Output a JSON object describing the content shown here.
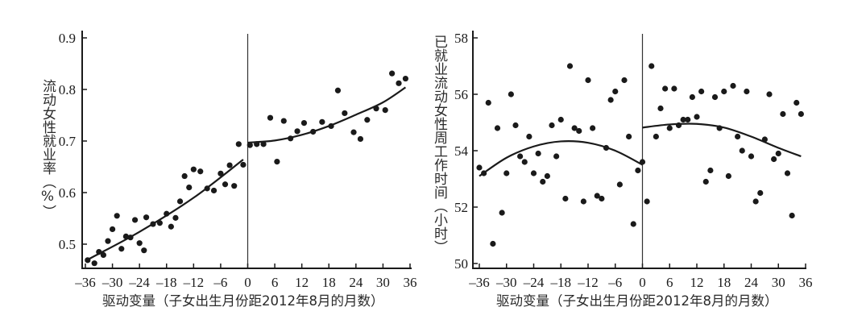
{
  "chart_data": [
    {
      "type": "scatter",
      "title": "",
      "xlabel": "驱动变量（子女出生月份距2012年8月的月数）",
      "ylabel": "流动女性就业率（%）",
      "xticks": [
        -36,
        -30,
        -24,
        -18,
        -12,
        -6,
        0,
        6,
        12,
        18,
        24,
        30,
        36
      ],
      "yticks": [
        0.5,
        0.6,
        0.7,
        0.8,
        0.9
      ],
      "xlim": [
        -37,
        37
      ],
      "ylim": [
        0.453,
        0.9
      ],
      "cutoff": 0,
      "grid": false,
      "series": [
        {
          "name": "scatter",
          "points": [
            [
              -35.5,
              0.469
            ],
            [
              -34,
              0.463
            ],
            [
              -33,
              0.485
            ],
            [
              -32,
              0.479
            ],
            [
              -31,
              0.506
            ],
            [
              -30,
              0.529
            ],
            [
              -29,
              0.555
            ],
            [
              -28,
              0.491
            ],
            [
              -27,
              0.515
            ],
            [
              -26,
              0.513
            ],
            [
              -25,
              0.547
            ],
            [
              -24,
              0.502
            ],
            [
              -23,
              0.488
            ],
            [
              -22.5,
              0.552
            ],
            [
              -21,
              0.539
            ],
            [
              -19.5,
              0.541
            ],
            [
              -18,
              0.559
            ],
            [
              -17,
              0.534
            ],
            [
              -16,
              0.551
            ],
            [
              -15,
              0.583
            ],
            [
              -14,
              0.632
            ],
            [
              -13,
              0.61
            ],
            [
              -12,
              0.645
            ],
            [
              -10.5,
              0.641
            ],
            [
              -9,
              0.608
            ],
            [
              -7.5,
              0.604
            ],
            [
              -6,
              0.637
            ],
            [
              -5,
              0.616
            ],
            [
              -4,
              0.653
            ],
            [
              -3,
              0.613
            ],
            [
              -2,
              0.694
            ],
            [
              -1,
              0.654
            ],
            [
              0.5,
              0.692
            ],
            [
              2,
              0.694
            ],
            [
              3.5,
              0.694
            ],
            [
              5,
              0.745
            ],
            [
              6.5,
              0.66
            ],
            [
              8,
              0.739
            ],
            [
              9.5,
              0.705
            ],
            [
              11,
              0.719
            ],
            [
              12.5,
              0.735
            ],
            [
              14.5,
              0.718
            ],
            [
              16.5,
              0.737
            ],
            [
              18.5,
              0.729
            ],
            [
              20,
              0.798
            ],
            [
              21.5,
              0.754
            ],
            [
              23.5,
              0.717
            ],
            [
              25,
              0.704
            ],
            [
              26.5,
              0.741
            ],
            [
              28.5,
              0.763
            ],
            [
              30.5,
              0.76
            ],
            [
              32,
              0.831
            ],
            [
              33.5,
              0.812
            ],
            [
              35,
              0.821
            ]
          ]
        },
        {
          "name": "fit-left",
          "type": "line",
          "points": [
            [
              -35.5,
              0.47
            ],
            [
              -24,
              0.524
            ],
            [
              -12,
              0.59
            ],
            [
              -1,
              0.664
            ]
          ]
        },
        {
          "name": "fit-right",
          "type": "line",
          "points": [
            [
              0,
              0.697
            ],
            [
              6,
              0.701
            ],
            [
              12,
              0.712
            ],
            [
              18,
              0.729
            ],
            [
              24,
              0.751
            ],
            [
              30,
              0.775
            ],
            [
              35,
              0.804
            ]
          ]
        }
      ]
    },
    {
      "type": "scatter",
      "title": "",
      "xlabel": "驱动变量（子女出生月份距2012年8月的月数）",
      "ylabel": "已就业流动女性周工作时间（小时）",
      "xticks": [
        -36,
        -30,
        -24,
        -18,
        -12,
        -6,
        0,
        6,
        12,
        18,
        24,
        30,
        36
      ],
      "yticks": [
        50,
        52,
        54,
        56,
        58
      ],
      "xlim": [
        -37,
        37
      ],
      "ylim": [
        49.8,
        58.1
      ],
      "cutoff": 0,
      "grid": false,
      "series": [
        {
          "name": "scatter",
          "points": [
            [
              -36,
              53.4
            ],
            [
              -35,
              53.2
            ],
            [
              -34,
              55.7
            ],
            [
              -33,
              50.7
            ],
            [
              -32,
              54.8
            ],
            [
              -31,
              51.8
            ],
            [
              -30,
              53.2
            ],
            [
              -29,
              56.0
            ],
            [
              -28,
              54.9
            ],
            [
              -27,
              53.8
            ],
            [
              -26,
              53.6
            ],
            [
              -25,
              54.5
            ],
            [
              -24,
              53.2
            ],
            [
              -23,
              53.9
            ],
            [
              -22,
              52.9
            ],
            [
              -21,
              53.1
            ],
            [
              -20,
              54.9
            ],
            [
              -19,
              53.8
            ],
            [
              -18,
              55.1
            ],
            [
              -17,
              52.3
            ],
            [
              -16,
              57.0
            ],
            [
              -15,
              54.8
            ],
            [
              -14,
              54.7
            ],
            [
              -13,
              52.2
            ],
            [
              -12,
              56.5
            ],
            [
              -11,
              54.8
            ],
            [
              -10,
              52.4
            ],
            [
              -9,
              52.3
            ],
            [
              -8,
              54.1
            ],
            [
              -7,
              55.8
            ],
            [
              -6,
              56.1
            ],
            [
              -5,
              52.8
            ],
            [
              -4,
              56.5
            ],
            [
              -3,
              54.5
            ],
            [
              -2,
              51.4
            ],
            [
              -1,
              53.3
            ],
            [
              0,
              53.6
            ],
            [
              1,
              52.2
            ],
            [
              2,
              57.0
            ],
            [
              3,
              54.5
            ],
            [
              4,
              55.5
            ],
            [
              5,
              56.2
            ],
            [
              6,
              54.8
            ],
            [
              7,
              56.2
            ],
            [
              8,
              54.9
            ],
            [
              9,
              55.1
            ],
            [
              10,
              55.1
            ],
            [
              11,
              55.9
            ],
            [
              12,
              55.2
            ],
            [
              13,
              56.1
            ],
            [
              14,
              52.9
            ],
            [
              15,
              53.3
            ],
            [
              16,
              55.9
            ],
            [
              17,
              54.8
            ],
            [
              18,
              56.1
            ],
            [
              19,
              53.1
            ],
            [
              20,
              56.3
            ],
            [
              21,
              54.5
            ],
            [
              22,
              54.0
            ],
            [
              23,
              56.1
            ],
            [
              24,
              53.8
            ],
            [
              25,
              52.2
            ],
            [
              26,
              52.5
            ],
            [
              27,
              54.4
            ],
            [
              28,
              56.0
            ],
            [
              29,
              53.7
            ],
            [
              30,
              53.9
            ],
            [
              31,
              55.3
            ],
            [
              32,
              53.2
            ],
            [
              33,
              51.7
            ],
            [
              34,
              55.7
            ],
            [
              35,
              55.3
            ]
          ]
        },
        {
          "name": "fit-left",
          "type": "line",
          "points": [
            [
              -36,
              53.1
            ],
            [
              -30,
              53.75
            ],
            [
              -24,
              54.15
            ],
            [
              -18,
              54.33
            ],
            [
              -12,
              54.28
            ],
            [
              -6,
              54.0
            ],
            [
              0,
              53.5
            ]
          ]
        },
        {
          "name": "fit-right",
          "type": "line",
          "points": [
            [
              0,
              54.82
            ],
            [
              6,
              54.93
            ],
            [
              12,
              54.95
            ],
            [
              18,
              54.82
            ],
            [
              24,
              54.5
            ],
            [
              30,
              54.1
            ],
            [
              35,
              53.8
            ]
          ]
        }
      ]
    }
  ],
  "charts": [
    {
      "ylabel": "流动女性就业率（%）",
      "xlabel": "驱动变量（子女出生月份距2012年8月的月数）"
    },
    {
      "ylabel": "已就业流动女性周工作时间（小时）",
      "xlabel": "驱动变量（子女出生月份距2012年8月的月数）"
    }
  ],
  "colors": {
    "ink": "#1a1a1a",
    "background": "#ffffff",
    "cutoff_line": "#333333"
  }
}
